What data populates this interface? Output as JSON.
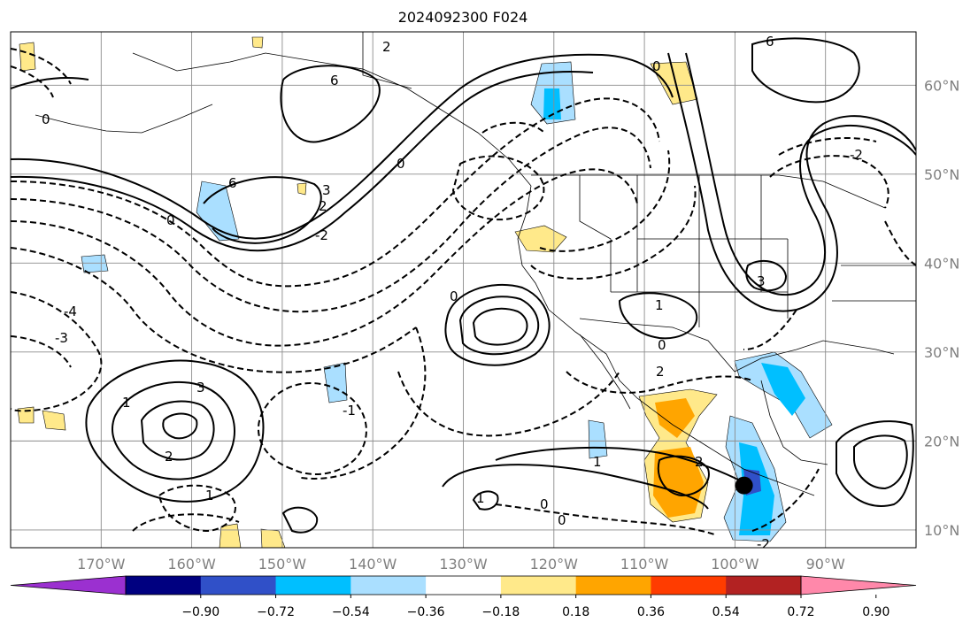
{
  "chart_data": {
    "type": "map-contour",
    "title": "2024092300 F024",
    "lon_ticks": [
      "170°W",
      "160°W",
      "150°W",
      "140°W",
      "130°W",
      "120°W",
      "110°W",
      "100°W",
      "90°W"
    ],
    "lat_ticks": [
      "60°N",
      "50°N",
      "40°N",
      "30°N",
      "20°N",
      "10°N"
    ],
    "lon_range": [
      -180,
      -80
    ],
    "lat_range": [
      8,
      66
    ],
    "grid": true,
    "colorbar": {
      "orientation": "horizontal",
      "extend": "both",
      "tick_labels": [
        "−0.90",
        "−0.72",
        "−0.54",
        "−0.36",
        "−0.18",
        "0.18",
        "0.36",
        "0.54",
        "0.72",
        "0.90"
      ],
      "colors": [
        "#9b30d0",
        "#000080",
        "#3050c8",
        "#00bfff",
        "#aadfff",
        "#ffffff",
        "#ffe98a",
        "#ffa500",
        "#ff3c00",
        "#b22222",
        "#ff88aa"
      ]
    },
    "contour_labels": [
      "-4",
      "-3",
      "-2",
      "-1",
      "0",
      "1",
      "2",
      "3",
      "6"
    ],
    "marker": {
      "lon": -99,
      "lat": 15
    }
  }
}
